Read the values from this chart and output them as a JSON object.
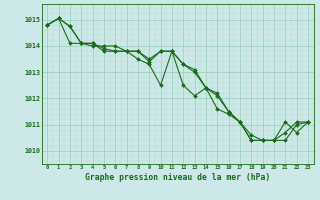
{
  "xlabel": "Graphe pression niveau de la mer (hPa)",
  "bg_color": "#cce8e8",
  "line_color": "#1a6b1a",
  "grid_major_color": "#99ccbb",
  "grid_minor_color": "#bbddcc",
  "ylim": [
    1009.5,
    1015.6
  ],
  "xlim": [
    -0.5,
    23.5
  ],
  "yticks": [
    1010,
    1011,
    1012,
    1013,
    1014,
    1015
  ],
  "xticks": [
    0,
    1,
    2,
    3,
    4,
    5,
    6,
    7,
    8,
    9,
    10,
    11,
    12,
    13,
    14,
    15,
    16,
    17,
    18,
    19,
    20,
    21,
    22,
    23
  ],
  "series1": [
    1014.8,
    1015.05,
    1014.75,
    1014.1,
    1014.1,
    1013.8,
    1013.8,
    1013.8,
    1013.8,
    1013.4,
    1013.8,
    1013.8,
    1013.3,
    1013.1,
    1012.4,
    1012.1,
    1011.5,
    1011.1,
    1010.4,
    1010.4,
    1010.4,
    1010.7,
    1011.1,
    1011.1
  ],
  "series2": [
    1014.8,
    1015.05,
    1014.75,
    1014.1,
    1014.1,
    1013.9,
    1013.8,
    1013.8,
    1013.5,
    1013.3,
    1012.5,
    1013.8,
    1012.5,
    1012.1,
    1012.4,
    1011.6,
    1011.4,
    1011.1,
    1010.6,
    1010.4,
    1010.4,
    1011.1,
    1010.7,
    1011.1
  ],
  "series3": [
    1014.8,
    1015.05,
    1014.1,
    1014.1,
    1014.0,
    1014.0,
    1014.0,
    1013.8,
    1013.8,
    1013.5,
    1013.8,
    1013.8,
    1013.3,
    1013.0,
    1012.4,
    1012.2,
    1011.5,
    1011.1,
    1010.4,
    1010.4,
    1010.4,
    1010.4,
    1011.0,
    1011.1
  ]
}
